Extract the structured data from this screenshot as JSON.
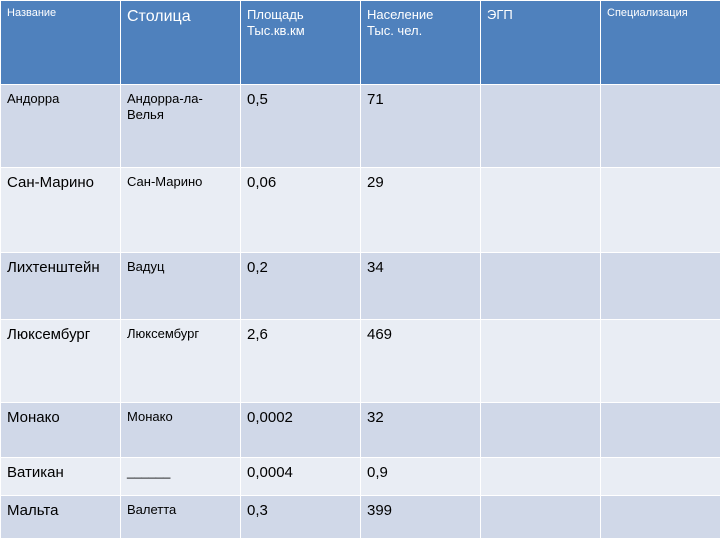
{
  "table": {
    "headers": [
      "Название",
      "Столица",
      "Площадь\nТыс.кв.км",
      "Население\nТыс. чел.",
      "ЭГП",
      "Специализация"
    ],
    "rows": [
      {
        "name": "Андорра",
        "capital": "Андорра-ла-\nВелья",
        "area": "0,5",
        "population": "71",
        "egp": "",
        "spec": ""
      },
      {
        "name": "Сан-Марино",
        "capital": "Сан-Марино",
        "area": "0,06",
        "population": "29",
        "egp": "",
        "spec": ""
      },
      {
        "name": "Лихтенштейн",
        "capital": "Вадуц",
        "area": "0,2",
        "population": "34",
        "egp": "",
        "spec": ""
      },
      {
        "name": "Люксембург",
        "capital": "Люксембург",
        "area": "2,6",
        "population": "469",
        "egp": "",
        "spec": ""
      },
      {
        "name": "Монако",
        "capital": "Монако",
        "area": "0,0002",
        "population": "32",
        "egp": "",
        "spec": ""
      },
      {
        "name": "Ватикан",
        "capital": "______",
        "area": "0,0004",
        "population": "0,9",
        "egp": "",
        "spec": ""
      },
      {
        "name": "Мальта",
        "capital": "Валетта",
        "area": "0,3",
        "population": "399",
        "egp": "",
        "spec": ""
      }
    ]
  }
}
